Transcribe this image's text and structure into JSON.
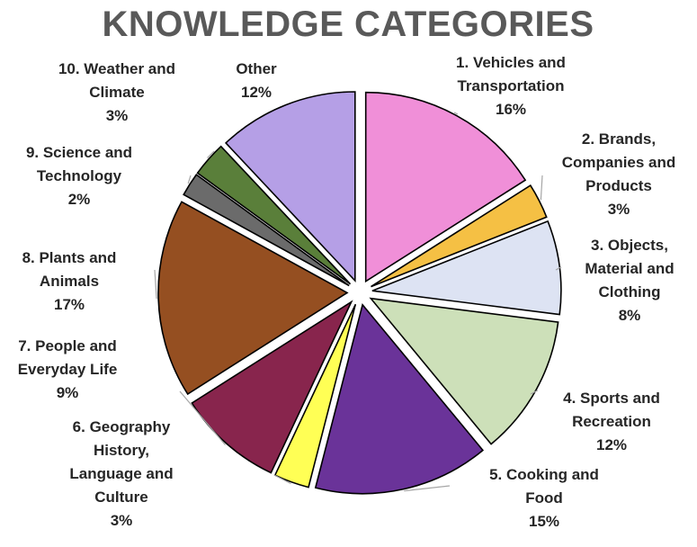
{
  "chart_data": {
    "type": "pie",
    "title": "KNOWLEDGE CATEGORIES",
    "slices": [
      {
        "name": "1. Vehicles and Transportation",
        "label_lines": [
          "1. Vehicles and",
          "Transportation"
        ],
        "value": 16,
        "value_label": "16%",
        "color": "#f08fd8"
      },
      {
        "name": "2. Brands, Companies and Products",
        "label_lines": [
          "2. Brands,",
          "Companies and",
          "Products"
        ],
        "value": 3,
        "value_label": "3%",
        "color": "#f5c044"
      },
      {
        "name": "3. Objects, Material and Clothing",
        "label_lines": [
          "3. Objects,",
          "Material and",
          "Clothing"
        ],
        "value": 8,
        "value_label": "8%",
        "color": "#dde3f3"
      },
      {
        "name": "4. Sports and Recreation",
        "label_lines": [
          "4. Sports and",
          "Recreation"
        ],
        "value": 12,
        "value_label": "12%",
        "color": "#cde0b9"
      },
      {
        "name": "5. Cooking and Food",
        "label_lines": [
          "5. Cooking and",
          "Food"
        ],
        "value": 15,
        "value_label": "15%",
        "color": "#6a3399"
      },
      {
        "name": "6. Geography History, Language and Culture",
        "label_lines": [
          "6. Geography",
          "History,",
          "Language and",
          "Culture"
        ],
        "value": 3,
        "value_label": "3%",
        "color": "#ffff55"
      },
      {
        "name": "7. People and Everyday Life",
        "label_lines": [
          "7. People and",
          "Everyday Life"
        ],
        "value": 9,
        "value_label": "9%",
        "color": "#88254d"
      },
      {
        "name": "8. Plants and Animals",
        "label_lines": [
          "8. Plants and",
          "Animals"
        ],
        "value": 17,
        "value_label": "17%",
        "color": "#954f21"
      },
      {
        "name": "9. Science and Technology",
        "label_lines": [
          "9. Science and",
          "Technology"
        ],
        "value": 2,
        "value_label": "2%",
        "color": "#6b6b6b"
      },
      {
        "name": "10. Weather and Climate",
        "label_lines": [
          "10. Weather and",
          "Climate"
        ],
        "value": 3,
        "value_label": "3%",
        "color": "#5a7f3a"
      },
      {
        "name": "Other",
        "label_lines": [
          "Other"
        ],
        "value": 12,
        "value_label": "12%",
        "color": "#b59fe6"
      }
    ],
    "legend": "none",
    "exploded": true
  }
}
